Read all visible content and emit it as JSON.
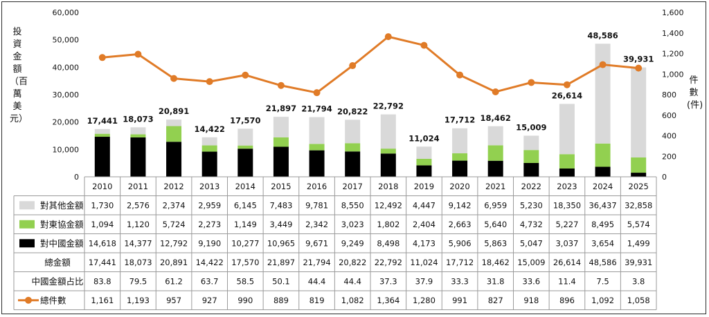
{
  "chart_data": {
    "type": "bar",
    "categories": [
      "2010",
      "2011",
      "2012",
      "2013",
      "2014",
      "2015",
      "2016",
      "2017",
      "2018",
      "2019",
      "2020",
      "2021",
      "2022",
      "2023",
      "2024",
      "2025"
    ],
    "ylabel": "投資金額（百萬美元）",
    "y2label": "件數(件)",
    "ylim": [
      0,
      60000
    ],
    "y2lim": [
      0,
      1600
    ],
    "yticks": [
      "0",
      "10,000",
      "20,000",
      "30,000",
      "40,000",
      "50,000",
      "60,000"
    ],
    "y2ticks": [
      "0",
      "200",
      "400",
      "600",
      "800",
      "1,000",
      "1,200",
      "1,400",
      "1,600"
    ],
    "grid": false,
    "stacked": true,
    "series": [
      {
        "name": "對中國金額",
        "color": "#000000",
        "values": [
          14618,
          14377,
          12792,
          9190,
          10277,
          10965,
          9671,
          9249,
          8498,
          4173,
          5906,
          5863,
          5047,
          3037,
          3654,
          1499
        ],
        "display": [
          "14,618",
          "14,377",
          "12,792",
          "9,190",
          "10,277",
          "10,965",
          "9,671",
          "9,249",
          "8,498",
          "4,173",
          "5,906",
          "5,863",
          "5,047",
          "3,037",
          "3,654",
          "1,499"
        ]
      },
      {
        "name": "對東協金額",
        "color": "#92d050",
        "values": [
          1094,
          1120,
          5724,
          2273,
          1149,
          3449,
          2342,
          3023,
          1802,
          2404,
          2663,
          5640,
          4732,
          5227,
          8495,
          5574
        ],
        "display": [
          "1,094",
          "1,120",
          "5,724",
          "2,273",
          "1,149",
          "3,449",
          "2,342",
          "3,023",
          "1,802",
          "2,404",
          "2,663",
          "5,640",
          "4,732",
          "5,227",
          "8,495",
          "5,574"
        ]
      },
      {
        "name": "對其他金額",
        "color": "#d9d9d9",
        "values": [
          1730,
          2576,
          2374,
          2959,
          6145,
          7483,
          9781,
          8550,
          12492,
          4447,
          9142,
          6959,
          5230,
          18350,
          36437,
          32858
        ],
        "display": [
          "1,730",
          "2,576",
          "2,374",
          "2,959",
          "6,145",
          "7,483",
          "9,781",
          "8,550",
          "12,492",
          "4,447",
          "9,142",
          "6,959",
          "5,230",
          "18,350",
          "36,437",
          "32,858"
        ]
      }
    ],
    "totals": {
      "name": "總金額",
      "values": [
        17441,
        18073,
        20891,
        14422,
        17570,
        21897,
        21794,
        20822,
        22792,
        11024,
        17712,
        18462,
        15009,
        26614,
        48586,
        39931
      ],
      "display": [
        "17,441",
        "18,073",
        "20,891",
        "14,422",
        "17,570",
        "21,897",
        "21,794",
        "20,822",
        "22,792",
        "11,024",
        "17,712",
        "18,462",
        "15,009",
        "26,614",
        "48,586",
        "39,931"
      ]
    },
    "china_share": {
      "name": "中國金額占比",
      "values": [
        83.8,
        79.5,
        61.2,
        63.7,
        58.5,
        50.1,
        44.4,
        44.4,
        37.3,
        37.9,
        33.3,
        31.8,
        33.6,
        11.4,
        7.5,
        3.8
      ],
      "display": [
        "83.8",
        "79.5",
        "61.2",
        "63.7",
        "58.5",
        "50.1",
        "44.4",
        "44.4",
        "37.3",
        "37.9",
        "33.3",
        "31.8",
        "33.6",
        "11.4",
        "7.5",
        "3.8"
      ]
    },
    "line": {
      "name": "總件數",
      "color": "#e07b27",
      "axis": "right",
      "values": [
        1161,
        1193,
        957,
        927,
        990,
        889,
        819,
        1082,
        1364,
        1280,
        991,
        827,
        918,
        896,
        1092,
        1058
      ],
      "display": [
        "1,161",
        "1,193",
        "957",
        "927",
        "990",
        "889",
        "819",
        "1,082",
        "1,364",
        "1,280",
        "991",
        "827",
        "918",
        "896",
        "1,092",
        "1,058"
      ]
    }
  }
}
